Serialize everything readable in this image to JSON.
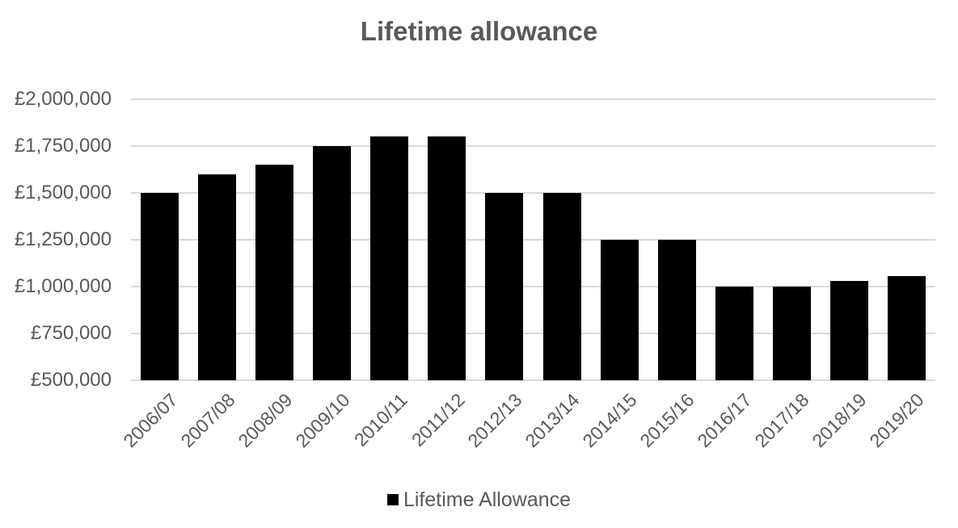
{
  "chart_data": {
    "type": "bar",
    "title": "Lifetime allowance",
    "xlabel": "",
    "ylabel": "",
    "categories": [
      "2006/07",
      "2007/08",
      "2008/09",
      "2009/10",
      "2010/11",
      "2011/12",
      "2012/13",
      "2013/14",
      "2014/15",
      "2015/16",
      "2016/17",
      "2017/18",
      "2018/19",
      "2019/20"
    ],
    "series": [
      {
        "name": "Lifetime Allowance",
        "color": "#000000",
        "values": [
          1500000,
          1600000,
          1650000,
          1750000,
          1800000,
          1800000,
          1500000,
          1500000,
          1250000,
          1250000,
          1000000,
          1000000,
          1030000,
          1055000
        ]
      }
    ],
    "ylim": [
      500000,
      2000000
    ],
    "yticks": [
      500000,
      750000,
      1000000,
      1250000,
      1500000,
      1750000,
      2000000
    ],
    "ytick_labels": [
      "£500,000",
      "£750,000",
      "£1,000,000",
      "£1,250,000",
      "£1,500,000",
      "£1,750,000",
      "£2,000,000"
    ],
    "grid": true,
    "legend_position": "bottom"
  },
  "legend": {
    "label": "Lifetime Allowance"
  }
}
